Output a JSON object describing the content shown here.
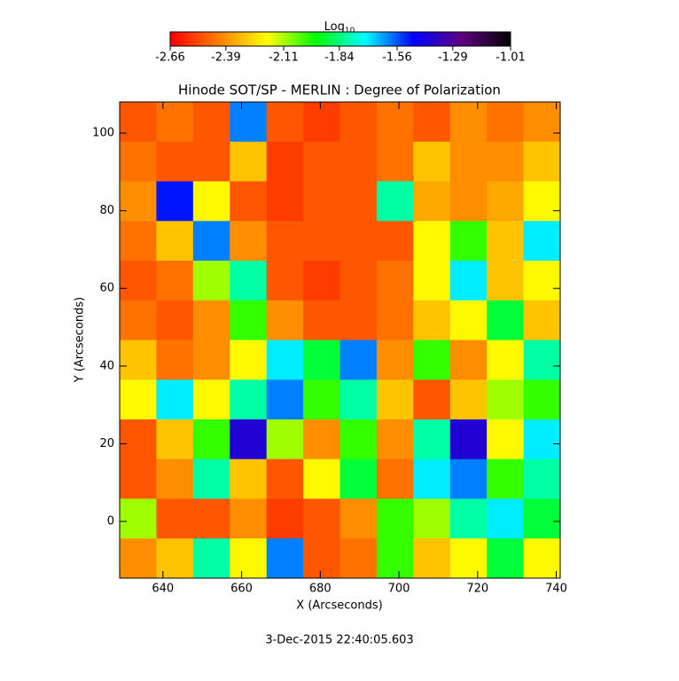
{
  "chart_data": {
    "type": "heatmap",
    "title": "Hinode SOT/SP - MERLIN : Degree of Polarization",
    "x_label": "X (Arcseconds)",
    "y_label": "Y (Arcseconds)",
    "footer": "3-Dec-2015 22:40:05.603",
    "colorbar_label": {
      "base": "Log",
      "subscript": "10"
    },
    "xlim": [
      629,
      741
    ],
    "ylim": [
      -14.6,
      108
    ],
    "xticks": [
      640,
      660,
      680,
      700,
      720,
      740
    ],
    "yticks": [
      0,
      20,
      40,
      60,
      80,
      100
    ],
    "zlim": [
      -2.66,
      -1.01
    ],
    "zticks": [
      -2.66,
      -2.39,
      -2.11,
      -1.84,
      -1.56,
      -1.29,
      -1.01
    ],
    "colormap": [
      "#ff0000",
      "#ff8000",
      "#ffff00",
      "#00ff00",
      "#00ffff",
      "#0000ff",
      "#600080",
      "#000000"
    ],
    "z": [
      [
        -2.5,
        -2.45,
        -2.5,
        -1.6,
        -2.5,
        -2.55,
        -2.5,
        -2.45,
        -2.5,
        -2.4,
        -2.45,
        -2.4
      ],
      [
        -2.45,
        -2.5,
        -2.5,
        -2.3,
        -2.55,
        -2.5,
        -2.5,
        -2.45,
        -2.3,
        -2.4,
        -2.4,
        -2.3
      ],
      [
        -2.4,
        -1.5,
        -2.2,
        -2.5,
        -2.55,
        -2.5,
        -2.5,
        -1.8,
        -2.35,
        -2.4,
        -2.35,
        -2.2
      ],
      [
        -2.45,
        -2.3,
        -1.6,
        -2.4,
        -2.5,
        -2.5,
        -2.5,
        -2.5,
        -2.2,
        -2.0,
        -2.3,
        -1.7
      ],
      [
        -2.5,
        -2.45,
        -2.1,
        -1.8,
        -2.5,
        -2.55,
        -2.5,
        -2.45,
        -2.2,
        -1.7,
        -2.3,
        -2.2
      ],
      [
        -2.45,
        -2.5,
        -2.4,
        -2.0,
        -2.4,
        -2.5,
        -2.5,
        -2.45,
        -2.3,
        -2.2,
        -1.9,
        -2.3
      ],
      [
        -2.3,
        -2.45,
        -2.4,
        -2.2,
        -1.7,
        -1.9,
        -1.6,
        -2.4,
        -2.0,
        -2.4,
        -2.2,
        -1.8
      ],
      [
        -2.2,
        -1.7,
        -2.2,
        -1.8,
        -1.6,
        -2.0,
        -1.8,
        -2.3,
        -2.5,
        -2.3,
        -2.1,
        -2.0
      ],
      [
        -2.5,
        -2.3,
        -2.0,
        -1.4,
        -2.1,
        -2.4,
        -2.0,
        -2.4,
        -1.8,
        -1.4,
        -2.2,
        -1.7
      ],
      [
        -2.5,
        -2.4,
        -1.8,
        -2.3,
        -2.5,
        -2.2,
        -1.9,
        -2.45,
        -1.7,
        -1.6,
        -2.0,
        -1.8
      ],
      [
        -2.1,
        -2.5,
        -2.5,
        -2.4,
        -2.55,
        -2.5,
        -2.4,
        -2.0,
        -2.1,
        -1.8,
        -1.7,
        -1.9
      ],
      [
        -2.4,
        -2.3,
        -1.8,
        -2.2,
        -1.6,
        -2.5,
        -2.45,
        -2.0,
        -2.3,
        -2.2,
        -1.9,
        -2.2
      ]
    ]
  }
}
